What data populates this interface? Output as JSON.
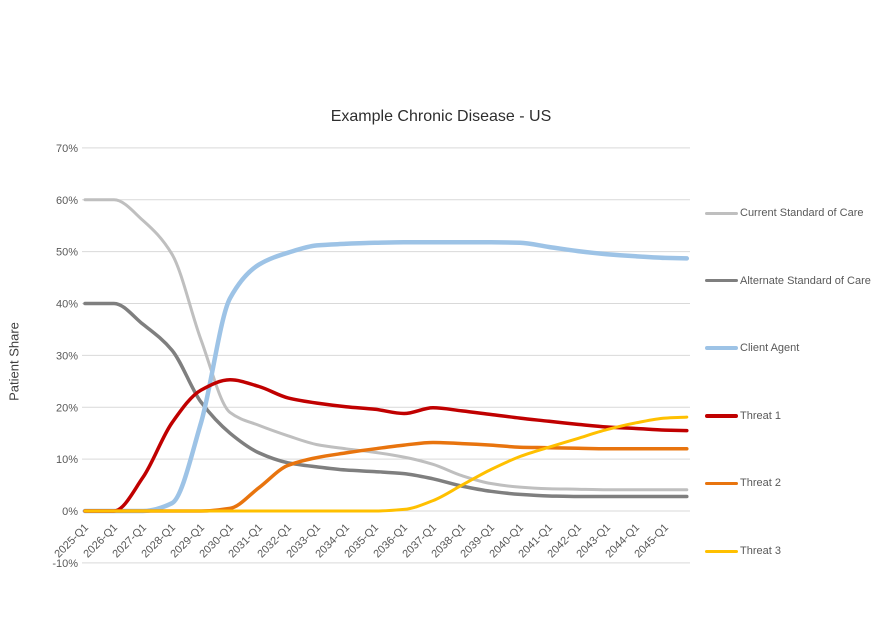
{
  "chart_data": {
    "type": "line",
    "title": "Example Chronic Disease - US",
    "ylabel": "Patient Share",
    "ylim": [
      -10,
      70
    ],
    "y_ticks": [
      -10,
      0,
      10,
      20,
      30,
      40,
      50,
      60,
      70
    ],
    "y_tick_format": "percent",
    "grid": "horizontal",
    "gridline_color": "#D9D9D9",
    "legend_position": "right",
    "x_tick_labels": [
      "2025-Q1",
      "2026-Q1",
      "2027-Q1",
      "2028-Q1",
      "2029-Q1",
      "2030-Q1",
      "2031-Q1",
      "2032-Q1",
      "2033-Q1",
      "2034-Q1",
      "2035-Q1",
      "2036-Q1",
      "2037-Q1",
      "2038-Q1",
      "2039-Q1",
      "2040-Q1",
      "2041-Q1",
      "2042-Q1",
      "2043-Q1",
      "2044-Q1",
      "2045-Q1"
    ],
    "x": [
      2025,
      2026,
      2027,
      2028,
      2029,
      2030,
      2031,
      2032,
      2033,
      2034,
      2035,
      2036,
      2037,
      2038,
      2039,
      2040,
      2041,
      2042,
      2043,
      2044,
      2045,
      2045.75
    ],
    "series": [
      {
        "name": "Current Standard of Care",
        "color": "#BFBFBF",
        "width": 3,
        "values": [
          60,
          60,
          56,
          49.5,
          33,
          19,
          16.5,
          14.5,
          12.8,
          12,
          11.3,
          10.4,
          9,
          6.8,
          5.3,
          4.6,
          4.3,
          4.2,
          4.1,
          4.1,
          4.1,
          4.1
        ]
      },
      {
        "name": "Alternate Standard of Care",
        "color": "#7F7F7F",
        "width": 3.5,
        "values": [
          40,
          40,
          36,
          31,
          21,
          15,
          11.2,
          9.3,
          8.5,
          7.9,
          7.6,
          7.2,
          6.2,
          4.8,
          3.8,
          3.2,
          2.9,
          2.8,
          2.8,
          2.8,
          2.8,
          2.8
        ]
      },
      {
        "name": "Client Agent",
        "color": "#9DC3E6",
        "width": 4.5,
        "values": [
          0,
          0,
          0,
          1.5,
          17,
          41,
          47.5,
          49.8,
          51.2,
          51.5,
          51.7,
          51.8,
          51.8,
          51.8,
          51.8,
          51.7,
          50.9,
          50.1,
          49.5,
          49.1,
          48.8,
          48.7
        ]
      },
      {
        "name": "Threat 1",
        "color": "#C00000",
        "width": 3.5,
        "values": [
          0,
          0,
          6.5,
          17,
          23.3,
          25.3,
          24,
          21.8,
          20.8,
          20.1,
          19.6,
          18.8,
          19.9,
          19.3,
          18.6,
          17.9,
          17.3,
          16.7,
          16.2,
          15.9,
          15.6,
          15.5
        ]
      },
      {
        "name": "Threat 2",
        "color": "#E8740E",
        "width": 3.5,
        "values": [
          0,
          0,
          0,
          0,
          0,
          0.5,
          4.5,
          8.8,
          10.3,
          11.2,
          12,
          12.7,
          13.2,
          13,
          12.7,
          12.3,
          12.2,
          12.1,
          12,
          12,
          12,
          12
        ]
      },
      {
        "name": "Threat 3",
        "color": "#FFC000",
        "width": 3,
        "values": [
          0,
          0,
          0,
          0,
          0,
          0,
          0,
          0,
          0,
          0,
          0,
          0.3,
          2,
          5,
          8,
          10.5,
          12.3,
          14,
          15.7,
          17,
          17.9,
          18.1
        ]
      }
    ]
  }
}
